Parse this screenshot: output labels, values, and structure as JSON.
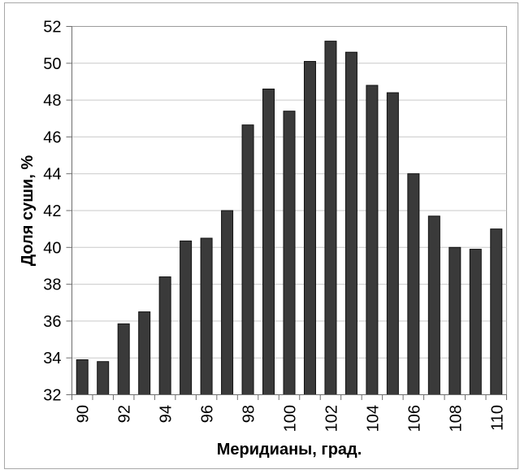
{
  "figure": {
    "background": "#ffffff",
    "border_color": "#a8a8a8"
  },
  "chart_data": {
    "type": "bar",
    "title": "",
    "x": [
      90,
      91,
      92,
      93,
      94,
      95,
      96,
      97,
      98,
      99,
      100,
      101,
      102,
      103,
      104,
      105,
      106,
      107,
      108,
      109,
      110
    ],
    "values": [
      33.9,
      33.8,
      35.85,
      36.5,
      38.4,
      40.35,
      40.5,
      42.0,
      46.65,
      48.6,
      47.4,
      50.1,
      51.2,
      50.6,
      48.8,
      48.4,
      44.0,
      41.7,
      40.0,
      39.9,
      41.0
    ],
    "xlabel": "Меридианы, град.",
    "ylabel": "Доля суши, %",
    "ylim": [
      32,
      52
    ],
    "ytick_step": 2,
    "yticks": [
      32,
      34,
      36,
      38,
      40,
      42,
      44,
      46,
      48,
      50,
      52
    ],
    "xtick_labels_shown": [
      90,
      92,
      94,
      96,
      98,
      100,
      102,
      104,
      106,
      108,
      110
    ],
    "xtick_label_interval": 2,
    "xtick_labels_rotated_degrees": -90,
    "grid": "horizontal",
    "legend": "none",
    "bar_color": "#3a3a3a",
    "bar_border_color": "#111111",
    "gridline_color": "#c9c9c9",
    "axis_color": "#6e6e6e",
    "plot_border_color": "#9c9c9c",
    "text_color": "#000000"
  }
}
